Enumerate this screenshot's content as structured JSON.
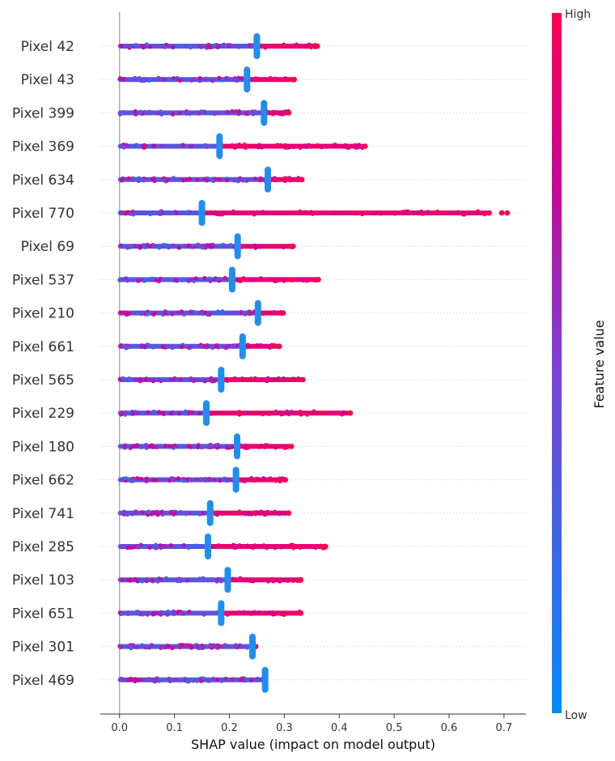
{
  "chart_data": {
    "type": "scatter",
    "subtype": "shap-beeswarm-summary",
    "title": "",
    "xlabel": "SHAP value (impact on model output)",
    "ylabel": "",
    "xlim": [
      -0.035,
      0.74
    ],
    "x_ticks": [
      "0.0",
      "0.1",
      "0.2",
      "0.3",
      "0.4",
      "0.5",
      "0.6",
      "0.7"
    ],
    "grid": "dotted horizontal row lines",
    "legend": "colorbar right",
    "colorbar": {
      "title": "Feature value",
      "high_label": "High",
      "low_label": "Low",
      "high_color": "#ff0052",
      "low_color": "#008bfb"
    },
    "features": [
      {
        "name": "Pixel 42",
        "min": 0.0,
        "mode": 0.25,
        "max": 0.36,
        "extra": []
      },
      {
        "name": "Pixel 43",
        "min": 0.0,
        "mode": 0.232,
        "max": 0.318,
        "extra": []
      },
      {
        "name": "Pixel 399",
        "min": 0.0,
        "mode": 0.263,
        "max": 0.308,
        "extra": []
      },
      {
        "name": "Pixel 369",
        "min": 0.0,
        "mode": 0.182,
        "max": 0.447,
        "extra": []
      },
      {
        "name": "Pixel 634",
        "min": 0.0,
        "mode": 0.27,
        "max": 0.332,
        "extra": []
      },
      {
        "name": "Pixel 770",
        "min": 0.0,
        "mode": 0.15,
        "max": 0.673,
        "extra": [
          0.696,
          0.706
        ]
      },
      {
        "name": "Pixel 69",
        "min": 0.0,
        "mode": 0.215,
        "max": 0.316,
        "extra": []
      },
      {
        "name": "Pixel 537",
        "min": 0.0,
        "mode": 0.205,
        "max": 0.362,
        "extra": []
      },
      {
        "name": "Pixel 210",
        "min": 0.0,
        "mode": 0.252,
        "max": 0.298,
        "extra": []
      },
      {
        "name": "Pixel 661",
        "min": 0.0,
        "mode": 0.224,
        "max": 0.291,
        "extra": []
      },
      {
        "name": "Pixel 565",
        "min": 0.0,
        "mode": 0.185,
        "max": 0.334,
        "extra": []
      },
      {
        "name": "Pixel 229",
        "min": 0.0,
        "mode": 0.158,
        "max": 0.42,
        "extra": []
      },
      {
        "name": "Pixel 180",
        "min": 0.0,
        "mode": 0.214,
        "max": 0.313,
        "extra": []
      },
      {
        "name": "Pixel 662",
        "min": 0.0,
        "mode": 0.212,
        "max": 0.302,
        "extra": []
      },
      {
        "name": "Pixel 741",
        "min": 0.0,
        "mode": 0.165,
        "max": 0.308,
        "extra": []
      },
      {
        "name": "Pixel 285",
        "min": 0.0,
        "mode": 0.161,
        "max": 0.375,
        "extra": []
      },
      {
        "name": "Pixel 103",
        "min": 0.0,
        "mode": 0.197,
        "max": 0.33,
        "extra": []
      },
      {
        "name": "Pixel 651",
        "min": 0.0,
        "mode": 0.185,
        "max": 0.33,
        "extra": []
      },
      {
        "name": "Pixel 301",
        "min": 0.0,
        "mode": 0.242,
        "max": 0.248,
        "extra": []
      },
      {
        "name": "Pixel 469",
        "min": 0.0,
        "mode": 0.265,
        "max": 0.265,
        "extra": []
      }
    ]
  }
}
